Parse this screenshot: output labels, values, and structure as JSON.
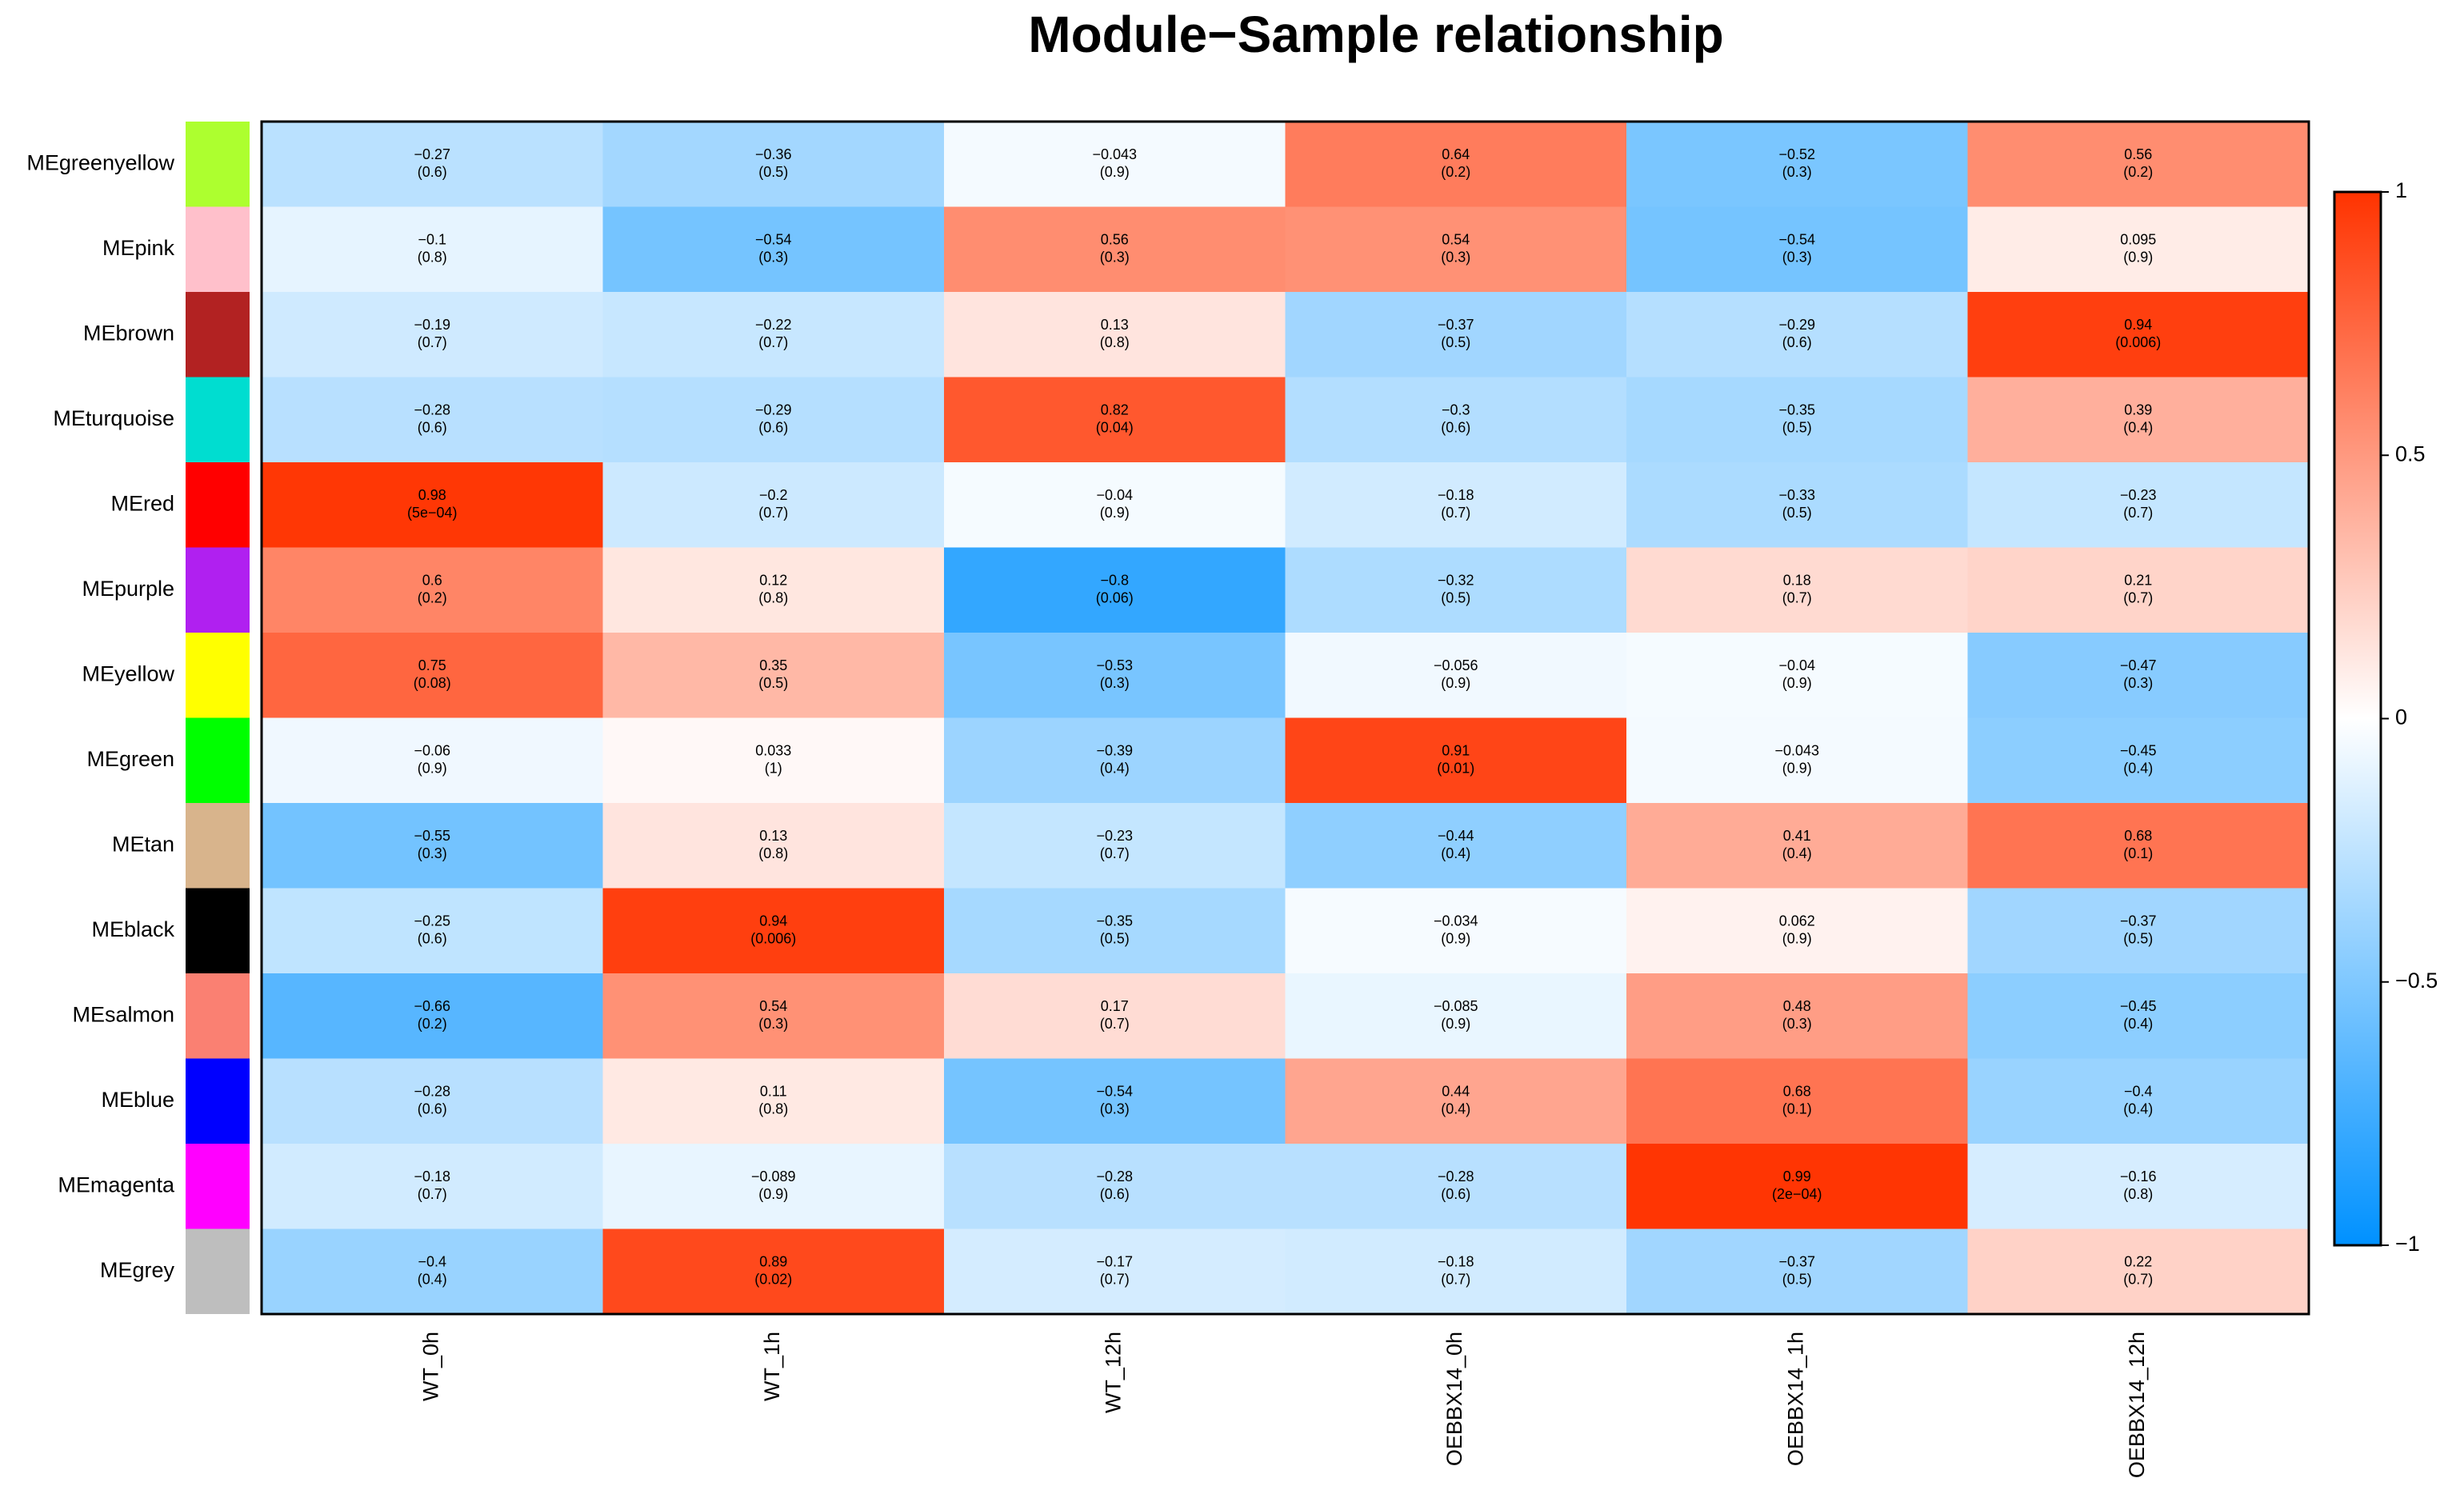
{
  "chart_data": {
    "type": "heatmap",
    "title": "Module−Sample relationship",
    "rows": [
      "MEgreenyellow",
      "MEpink",
      "MEbrown",
      "MEturquoise",
      "MEred",
      "MEpurple",
      "MEyellow",
      "MEgreen",
      "MEtan",
      "MEblack",
      "MEsalmon",
      "MEblue",
      "MEmagenta",
      "MEgrey"
    ],
    "row_colors": [
      "#adff2f",
      "#ffc0cb",
      "#b22222",
      "#00ddd0",
      "#ff0000",
      "#b020f0",
      "#ffff00",
      "#00ff00",
      "#d8b48c",
      "#000000",
      "#fa8072",
      "#0000ff",
      "#ff00ff",
      "#bebebe"
    ],
    "columns": [
      "WT_0h",
      "WT_1h",
      "WT_12h",
      "OEBBX14_0h",
      "OEBBX14_1h",
      "OEBBX14_12h"
    ],
    "values": [
      [
        -0.27,
        -0.36,
        -0.043,
        0.64,
        -0.52,
        0.56
      ],
      [
        -0.1,
        -0.54,
        0.56,
        0.54,
        -0.54,
        0.095
      ],
      [
        -0.19,
        -0.22,
        0.13,
        -0.37,
        -0.29,
        0.94
      ],
      [
        -0.28,
        -0.29,
        0.82,
        -0.3,
        -0.35,
        0.39
      ],
      [
        0.98,
        -0.2,
        -0.04,
        -0.18,
        -0.33,
        -0.23
      ],
      [
        0.6,
        0.12,
        -0.8,
        -0.32,
        0.18,
        0.21
      ],
      [
        0.75,
        0.35,
        -0.53,
        -0.056,
        -0.04,
        -0.47
      ],
      [
        -0.06,
        0.033,
        -0.39,
        0.91,
        -0.043,
        -0.45
      ],
      [
        -0.55,
        0.13,
        -0.23,
        -0.44,
        0.41,
        0.68
      ],
      [
        -0.25,
        0.94,
        -0.35,
        -0.034,
        0.062,
        -0.37
      ],
      [
        -0.66,
        0.54,
        0.17,
        -0.085,
        0.48,
        -0.45
      ],
      [
        -0.28,
        0.11,
        -0.54,
        0.44,
        0.68,
        -0.4
      ],
      [
        -0.18,
        -0.089,
        -0.28,
        -0.28,
        0.99,
        -0.16
      ],
      [
        -0.4,
        0.89,
        -0.17,
        -0.18,
        -0.37,
        0.22
      ]
    ],
    "value_labels": [
      [
        "−0.27",
        "−0.36",
        "−0.043",
        "0.64",
        "−0.52",
        "0.56"
      ],
      [
        "−0.1",
        "−0.54",
        "0.56",
        "0.54",
        "−0.54",
        "0.095"
      ],
      [
        "−0.19",
        "−0.22",
        "0.13",
        "−0.37",
        "−0.29",
        "0.94"
      ],
      [
        "−0.28",
        "−0.29",
        "0.82",
        "−0.3",
        "−0.35",
        "0.39"
      ],
      [
        "0.98",
        "−0.2",
        "−0.04",
        "−0.18",
        "−0.33",
        "−0.23"
      ],
      [
        "0.6",
        "0.12",
        "−0.8",
        "−0.32",
        "0.18",
        "0.21"
      ],
      [
        "0.75",
        "0.35",
        "−0.53",
        "−0.056",
        "−0.04",
        "−0.47"
      ],
      [
        "−0.06",
        "0.033",
        "−0.39",
        "0.91",
        "−0.043",
        "−0.45"
      ],
      [
        "−0.55",
        "0.13",
        "−0.23",
        "−0.44",
        "0.41",
        "0.68"
      ],
      [
        "−0.25",
        "0.94",
        "−0.35",
        "−0.034",
        "0.062",
        "−0.37"
      ],
      [
        "−0.66",
        "0.54",
        "0.17",
        "−0.085",
        "0.48",
        "−0.45"
      ],
      [
        "−0.28",
        "0.11",
        "−0.54",
        "0.44",
        "0.68",
        "−0.4"
      ],
      [
        "−0.18",
        "−0.089",
        "−0.28",
        "−0.28",
        "0.99",
        "−0.16"
      ],
      [
        "−0.4",
        "0.89",
        "−0.17",
        "−0.18",
        "−0.37",
        "0.22"
      ]
    ],
    "pvalues": [
      [
        0.6,
        0.5,
        0.9,
        0.2,
        0.3,
        0.2
      ],
      [
        0.8,
        0.3,
        0.3,
        0.3,
        0.3,
        0.9
      ],
      [
        0.7,
        0.7,
        0.8,
        0.5,
        0.6,
        0.006
      ],
      [
        0.6,
        0.6,
        0.04,
        0.6,
        0.5,
        0.4
      ],
      [
        0.0005,
        0.7,
        0.9,
        0.7,
        0.5,
        0.7
      ],
      [
        0.2,
        0.8,
        0.06,
        0.5,
        0.7,
        0.7
      ],
      [
        0.08,
        0.5,
        0.3,
        0.9,
        0.9,
        0.3
      ],
      [
        0.9,
        1,
        0.4,
        0.01,
        0.9,
        0.4
      ],
      [
        0.3,
        0.8,
        0.7,
        0.4,
        0.4,
        0.1
      ],
      [
        0.6,
        0.006,
        0.5,
        0.9,
        0.9,
        0.5
      ],
      [
        0.2,
        0.3,
        0.7,
        0.9,
        0.3,
        0.4
      ],
      [
        0.6,
        0.8,
        0.3,
        0.4,
        0.1,
        0.4
      ],
      [
        0.7,
        0.9,
        0.6,
        0.6,
        0.0002,
        0.8
      ],
      [
        0.4,
        0.02,
        0.7,
        0.7,
        0.5,
        0.7
      ]
    ],
    "pvalue_labels": [
      [
        "(0.6)",
        "(0.5)",
        "(0.9)",
        "(0.2)",
        "(0.3)",
        "(0.2)"
      ],
      [
        "(0.8)",
        "(0.3)",
        "(0.3)",
        "(0.3)",
        "(0.3)",
        "(0.9)"
      ],
      [
        "(0.7)",
        "(0.7)",
        "(0.8)",
        "(0.5)",
        "(0.6)",
        "(0.006)"
      ],
      [
        "(0.6)",
        "(0.6)",
        "(0.04)",
        "(0.6)",
        "(0.5)",
        "(0.4)"
      ],
      [
        "(5e−04)",
        "(0.7)",
        "(0.9)",
        "(0.7)",
        "(0.5)",
        "(0.7)"
      ],
      [
        "(0.2)",
        "(0.8)",
        "(0.06)",
        "(0.5)",
        "(0.7)",
        "(0.7)"
      ],
      [
        "(0.08)",
        "(0.5)",
        "(0.3)",
        "(0.9)",
        "(0.9)",
        "(0.3)"
      ],
      [
        "(0.9)",
        "(1)",
        "(0.4)",
        "(0.01)",
        "(0.9)",
        "(0.4)"
      ],
      [
        "(0.3)",
        "(0.8)",
        "(0.7)",
        "(0.4)",
        "(0.4)",
        "(0.1)"
      ],
      [
        "(0.6)",
        "(0.006)",
        "(0.5)",
        "(0.9)",
        "(0.9)",
        "(0.5)"
      ],
      [
        "(0.2)",
        "(0.3)",
        "(0.7)",
        "(0.9)",
        "(0.3)",
        "(0.4)"
      ],
      [
        "(0.6)",
        "(0.8)",
        "(0.3)",
        "(0.4)",
        "(0.1)",
        "(0.4)"
      ],
      [
        "(0.7)",
        "(0.9)",
        "(0.6)",
        "(0.6)",
        "(2e−04)",
        "(0.8)"
      ],
      [
        "(0.4)",
        "(0.02)",
        "(0.7)",
        "(0.7)",
        "(0.5)",
        "(0.7)"
      ]
    ],
    "zlim": [
      -1,
      1
    ],
    "zticks": [
      {
        "value": -1,
        "label": "−1"
      },
      {
        "value": -0.5,
        "label": "−0.5"
      },
      0,
      0.5,
      1
    ],
    "colorscale": [
      "#0091ff",
      "#ffffff",
      "#ff3300"
    ]
  }
}
